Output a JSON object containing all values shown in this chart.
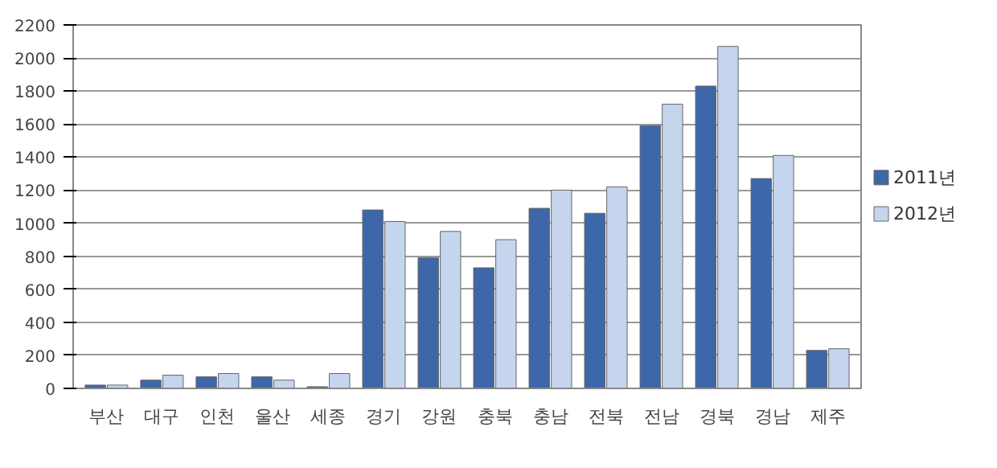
{
  "chart_data": {
    "type": "bar",
    "categories": [
      "부산",
      "대구",
      "인천",
      "울산",
      "세종",
      "경기",
      "강원",
      "충북",
      "충남",
      "전북",
      "전남",
      "경북",
      "경남",
      "제주"
    ],
    "series": [
      {
        "name": "2011년",
        "color": "#3d67a8",
        "values": [
          20,
          50,
          70,
          70,
          10,
          1080,
          790,
          730,
          1090,
          1060,
          1590,
          1830,
          1270,
          230
        ]
      },
      {
        "name": "2012년",
        "color": "#c6d5ee",
        "values": [
          20,
          80,
          90,
          50,
          90,
          1010,
          950,
          900,
          1200,
          1220,
          1720,
          2070,
          1410,
          240
        ]
      }
    ],
    "ylim": [
      0,
      2200
    ],
    "yticks": [
      0,
      200,
      400,
      600,
      800,
      1000,
      1200,
      1400,
      1600,
      1800,
      2000,
      2200
    ],
    "grid": "y",
    "legend": "right"
  }
}
